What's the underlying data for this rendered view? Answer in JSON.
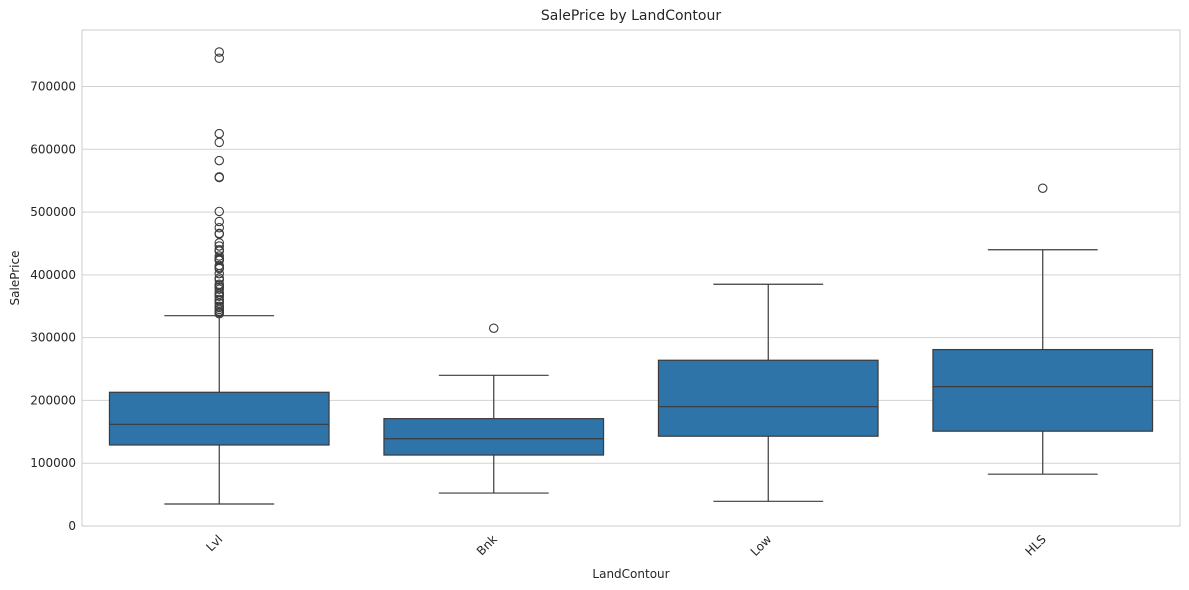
{
  "chart_data": {
    "type": "box",
    "title": "SalePrice by LandContour",
    "xlabel": "LandContour",
    "ylabel": "SalePrice",
    "ylim": [
      0,
      790000
    ],
    "yticks": [
      0,
      100000,
      200000,
      300000,
      400000,
      500000,
      600000,
      700000
    ],
    "ytick_labels": [
      "0",
      "100000",
      "200000",
      "300000",
      "400000",
      "500000",
      "600000",
      "700000"
    ],
    "grid": true,
    "box_color": "#2f74a8",
    "categories": [
      "Lvl",
      "Bnk",
      "Low",
      "HLS"
    ],
    "boxes": [
      {
        "category": "Lvl",
        "whisker_low": 35000,
        "q1": 129000,
        "median": 162000,
        "q3": 213000,
        "whisker_high": 335000,
        "outliers": [
          755000,
          745000,
          625000,
          611000,
          582000,
          556000,
          555000,
          501000,
          485000,
          475000,
          466000,
          465000,
          451000,
          446000,
          440000,
          438000,
          430000,
          426000,
          424000,
          423000,
          415000,
          412000,
          410000,
          402000,
          395000,
          392000,
          385000,
          383000,
          380000,
          377000,
          372000,
          369000,
          366000,
          361000,
          359000,
          355000,
          350000,
          348000,
          345000,
          342000,
          340000,
          338000
        ]
      },
      {
        "category": "Bnk",
        "whisker_low": 52500,
        "q1": 113000,
        "median": 139000,
        "q3": 171000,
        "whisker_high": 240000,
        "outliers": [
          315000
        ]
      },
      {
        "category": "Low",
        "whisker_low": 39300,
        "q1": 143000,
        "median": 190000,
        "q3": 264000,
        "whisker_high": 385000,
        "outliers": []
      },
      {
        "category": "HLS",
        "whisker_low": 82500,
        "q1": 151000,
        "median": 222000,
        "q3": 281000,
        "whisker_high": 440000,
        "outliers": [
          538000
        ]
      }
    ]
  }
}
